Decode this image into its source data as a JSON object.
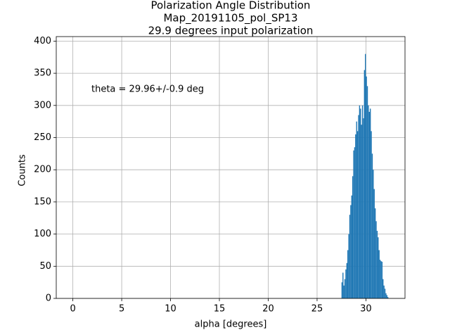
{
  "chart_data": {
    "type": "histogram",
    "title": [
      "Polarization Angle Distribution",
      "Map_20191105_pol_SP13",
      "29.9 degrees input polarization"
    ],
    "xlabel": "alpha [degrees]",
    "ylabel": "Counts",
    "annotation": "theta = 29.96+/-0.9 deg",
    "annotation_color": "#0000ff",
    "color": "#1f77b4",
    "grid": true,
    "bins": [
      27.5,
      27.6,
      27.7,
      27.8,
      27.9,
      28.0,
      28.1,
      28.2,
      28.3,
      28.4,
      28.5,
      28.6,
      28.7,
      28.8,
      28.9,
      29.0,
      29.1,
      29.2,
      29.3,
      29.4,
      29.5,
      29.6,
      29.7,
      29.8,
      29.9,
      30.0,
      30.1,
      30.2,
      30.3,
      30.4,
      30.5,
      30.6,
      30.7,
      30.8,
      30.9,
      31.0,
      31.1,
      31.2,
      31.3,
      31.4,
      31.5,
      31.6,
      31.7,
      31.8,
      31.9,
      32.0,
      32.1,
      32.2,
      32.3
    ],
    "values": [
      25,
      40,
      20,
      30,
      45,
      55,
      75,
      100,
      130,
      145,
      160,
      190,
      230,
      235,
      255,
      275,
      260,
      285,
      300,
      295,
      270,
      300,
      280,
      355,
      380,
      345,
      330,
      300,
      290,
      295,
      260,
      225,
      200,
      170,
      140,
      120,
      105,
      95,
      75,
      60,
      58,
      57,
      30,
      20,
      15,
      8,
      5,
      2
    ],
    "xlim": [
      -1.7,
      34.0
    ],
    "ylim": [
      0,
      407
    ],
    "xticks": [
      0,
      5,
      10,
      15,
      20,
      25,
      30
    ],
    "yticks": [
      0,
      50,
      100,
      150,
      200,
      250,
      300,
      350,
      400
    ]
  }
}
